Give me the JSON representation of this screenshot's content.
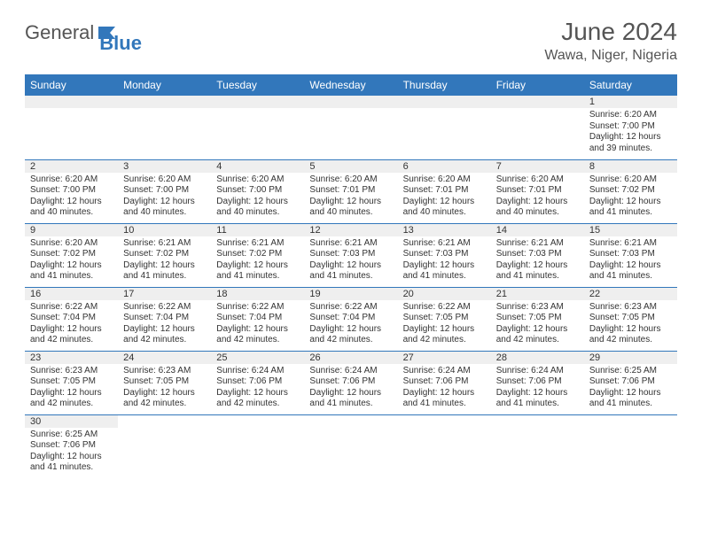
{
  "brand": {
    "name1": "General",
    "name2": "Blue"
  },
  "title": "June 2024",
  "location": "Wawa, Niger, Nigeria",
  "colors": {
    "header_bg": "#3277bb",
    "header_fg": "#ffffff",
    "daynum_bg": "#efefef",
    "cell_border": "#3277bb",
    "text": "#333333",
    "title_text": "#555555"
  },
  "fonts": {
    "title_pt": 28,
    "location_pt": 16,
    "th_pt": 12,
    "cell_pt": 10
  },
  "weekdays": [
    "Sunday",
    "Monday",
    "Tuesday",
    "Wednesday",
    "Thursday",
    "Friday",
    "Saturday"
  ],
  "grid": [
    [
      null,
      null,
      null,
      null,
      null,
      null,
      {
        "n": "1",
        "sunrise": "Sunrise: 6:20 AM",
        "sunset": "Sunset: 7:00 PM",
        "day1": "Daylight: 12 hours",
        "day2": "and 39 minutes."
      }
    ],
    [
      {
        "n": "2",
        "sunrise": "Sunrise: 6:20 AM",
        "sunset": "Sunset: 7:00 PM",
        "day1": "Daylight: 12 hours",
        "day2": "and 40 minutes."
      },
      {
        "n": "3",
        "sunrise": "Sunrise: 6:20 AM",
        "sunset": "Sunset: 7:00 PM",
        "day1": "Daylight: 12 hours",
        "day2": "and 40 minutes."
      },
      {
        "n": "4",
        "sunrise": "Sunrise: 6:20 AM",
        "sunset": "Sunset: 7:00 PM",
        "day1": "Daylight: 12 hours",
        "day2": "and 40 minutes."
      },
      {
        "n": "5",
        "sunrise": "Sunrise: 6:20 AM",
        "sunset": "Sunset: 7:01 PM",
        "day1": "Daylight: 12 hours",
        "day2": "and 40 minutes."
      },
      {
        "n": "6",
        "sunrise": "Sunrise: 6:20 AM",
        "sunset": "Sunset: 7:01 PM",
        "day1": "Daylight: 12 hours",
        "day2": "and 40 minutes."
      },
      {
        "n": "7",
        "sunrise": "Sunrise: 6:20 AM",
        "sunset": "Sunset: 7:01 PM",
        "day1": "Daylight: 12 hours",
        "day2": "and 40 minutes."
      },
      {
        "n": "8",
        "sunrise": "Sunrise: 6:20 AM",
        "sunset": "Sunset: 7:02 PM",
        "day1": "Daylight: 12 hours",
        "day2": "and 41 minutes."
      }
    ],
    [
      {
        "n": "9",
        "sunrise": "Sunrise: 6:20 AM",
        "sunset": "Sunset: 7:02 PM",
        "day1": "Daylight: 12 hours",
        "day2": "and 41 minutes."
      },
      {
        "n": "10",
        "sunrise": "Sunrise: 6:21 AM",
        "sunset": "Sunset: 7:02 PM",
        "day1": "Daylight: 12 hours",
        "day2": "and 41 minutes."
      },
      {
        "n": "11",
        "sunrise": "Sunrise: 6:21 AM",
        "sunset": "Sunset: 7:02 PM",
        "day1": "Daylight: 12 hours",
        "day2": "and 41 minutes."
      },
      {
        "n": "12",
        "sunrise": "Sunrise: 6:21 AM",
        "sunset": "Sunset: 7:03 PM",
        "day1": "Daylight: 12 hours",
        "day2": "and 41 minutes."
      },
      {
        "n": "13",
        "sunrise": "Sunrise: 6:21 AM",
        "sunset": "Sunset: 7:03 PM",
        "day1": "Daylight: 12 hours",
        "day2": "and 41 minutes."
      },
      {
        "n": "14",
        "sunrise": "Sunrise: 6:21 AM",
        "sunset": "Sunset: 7:03 PM",
        "day1": "Daylight: 12 hours",
        "day2": "and 41 minutes."
      },
      {
        "n": "15",
        "sunrise": "Sunrise: 6:21 AM",
        "sunset": "Sunset: 7:03 PM",
        "day1": "Daylight: 12 hours",
        "day2": "and 41 minutes."
      }
    ],
    [
      {
        "n": "16",
        "sunrise": "Sunrise: 6:22 AM",
        "sunset": "Sunset: 7:04 PM",
        "day1": "Daylight: 12 hours",
        "day2": "and 42 minutes."
      },
      {
        "n": "17",
        "sunrise": "Sunrise: 6:22 AM",
        "sunset": "Sunset: 7:04 PM",
        "day1": "Daylight: 12 hours",
        "day2": "and 42 minutes."
      },
      {
        "n": "18",
        "sunrise": "Sunrise: 6:22 AM",
        "sunset": "Sunset: 7:04 PM",
        "day1": "Daylight: 12 hours",
        "day2": "and 42 minutes."
      },
      {
        "n": "19",
        "sunrise": "Sunrise: 6:22 AM",
        "sunset": "Sunset: 7:04 PM",
        "day1": "Daylight: 12 hours",
        "day2": "and 42 minutes."
      },
      {
        "n": "20",
        "sunrise": "Sunrise: 6:22 AM",
        "sunset": "Sunset: 7:05 PM",
        "day1": "Daylight: 12 hours",
        "day2": "and 42 minutes."
      },
      {
        "n": "21",
        "sunrise": "Sunrise: 6:23 AM",
        "sunset": "Sunset: 7:05 PM",
        "day1": "Daylight: 12 hours",
        "day2": "and 42 minutes."
      },
      {
        "n": "22",
        "sunrise": "Sunrise: 6:23 AM",
        "sunset": "Sunset: 7:05 PM",
        "day1": "Daylight: 12 hours",
        "day2": "and 42 minutes."
      }
    ],
    [
      {
        "n": "23",
        "sunrise": "Sunrise: 6:23 AM",
        "sunset": "Sunset: 7:05 PM",
        "day1": "Daylight: 12 hours",
        "day2": "and 42 minutes."
      },
      {
        "n": "24",
        "sunrise": "Sunrise: 6:23 AM",
        "sunset": "Sunset: 7:05 PM",
        "day1": "Daylight: 12 hours",
        "day2": "and 42 minutes."
      },
      {
        "n": "25",
        "sunrise": "Sunrise: 6:24 AM",
        "sunset": "Sunset: 7:06 PM",
        "day1": "Daylight: 12 hours",
        "day2": "and 42 minutes."
      },
      {
        "n": "26",
        "sunrise": "Sunrise: 6:24 AM",
        "sunset": "Sunset: 7:06 PM",
        "day1": "Daylight: 12 hours",
        "day2": "and 41 minutes."
      },
      {
        "n": "27",
        "sunrise": "Sunrise: 6:24 AM",
        "sunset": "Sunset: 7:06 PM",
        "day1": "Daylight: 12 hours",
        "day2": "and 41 minutes."
      },
      {
        "n": "28",
        "sunrise": "Sunrise: 6:24 AM",
        "sunset": "Sunset: 7:06 PM",
        "day1": "Daylight: 12 hours",
        "day2": "and 41 minutes."
      },
      {
        "n": "29",
        "sunrise": "Sunrise: 6:25 AM",
        "sunset": "Sunset: 7:06 PM",
        "day1": "Daylight: 12 hours",
        "day2": "and 41 minutes."
      }
    ],
    [
      {
        "n": "30",
        "sunrise": "Sunrise: 6:25 AM",
        "sunset": "Sunset: 7:06 PM",
        "day1": "Daylight: 12 hours",
        "day2": "and 41 minutes."
      },
      null,
      null,
      null,
      null,
      null,
      null
    ]
  ]
}
